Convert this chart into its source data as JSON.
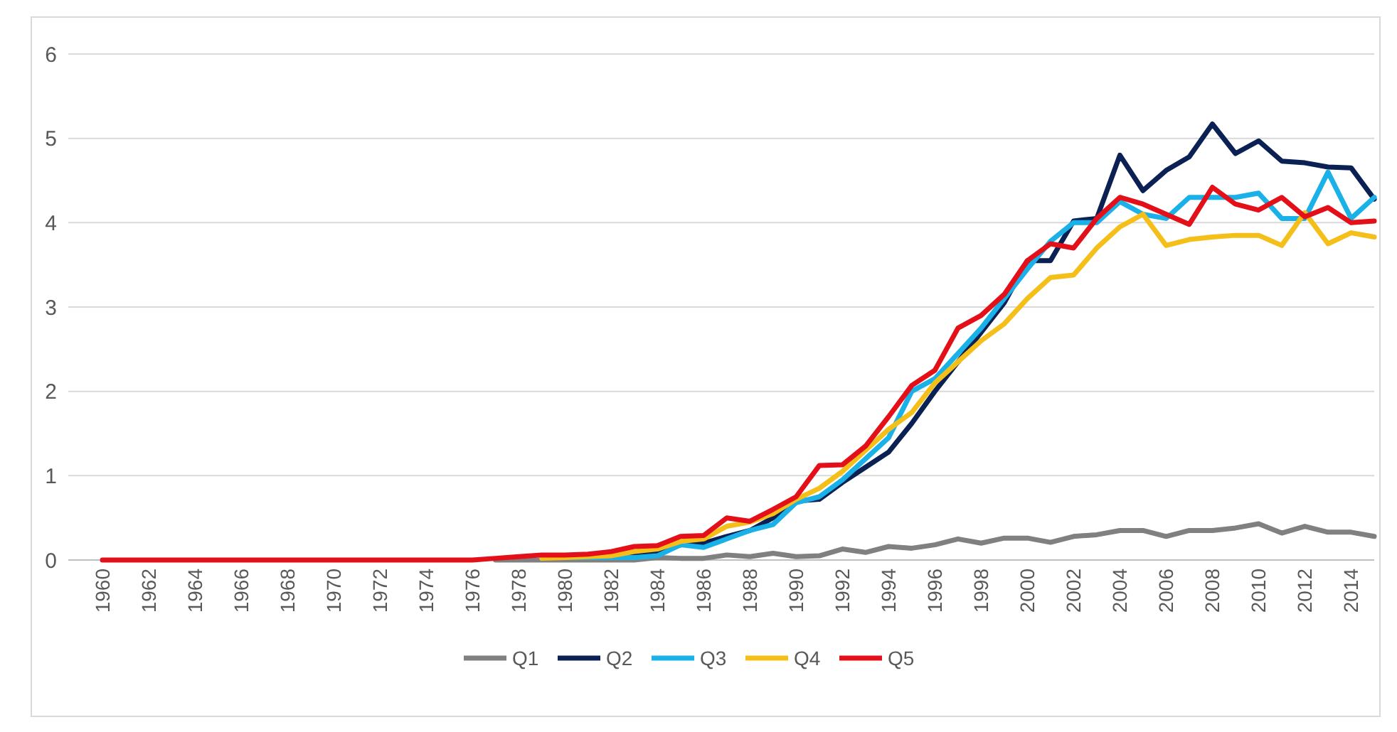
{
  "chart_data": {
    "type": "line",
    "categories": [
      "1960",
      null,
      "1962",
      null,
      "1964",
      null,
      "1966",
      null,
      "1968",
      null,
      "1970",
      null,
      "1972",
      null,
      "1974",
      null,
      "1976",
      null,
      "1978",
      null,
      "1980",
      null,
      "1982",
      null,
      "1984",
      null,
      "1986",
      null,
      "1988",
      null,
      "1990",
      null,
      "1992",
      null,
      "1994",
      null,
      "1996",
      null,
      "1998",
      null,
      "2000",
      null,
      "2002",
      null,
      "2004",
      null,
      "2006",
      null,
      "2008",
      null,
      "2010",
      null,
      "2012",
      null,
      "2014",
      null
    ],
    "ylim": [
      0,
      6
    ],
    "yticks": [
      0,
      1,
      2,
      3,
      4,
      5,
      6
    ],
    "grid": "y",
    "legend": "bottom",
    "marker": "none",
    "line_style": "solid",
    "series": [
      {
        "name": "Q1",
        "color": "#808080",
        "values": [
          null,
          null,
          null,
          null,
          null,
          null,
          null,
          null,
          null,
          null,
          null,
          null,
          null,
          null,
          null,
          null,
          null,
          0,
          0,
          0,
          0,
          0,
          0,
          0,
          0.03,
          0.02,
          0.02,
          0.06,
          0.04,
          0.08,
          0.04,
          0.05,
          0.13,
          0.09,
          0.16,
          0.14,
          0.18,
          0.25,
          0.2,
          0.26,
          0.26,
          0.21,
          0.28,
          0.3,
          0.35,
          0.35,
          0.28,
          0.35,
          0.35,
          0.38,
          0.43,
          0.32,
          0.4,
          0.33,
          0.33,
          0.28
        ]
      },
      {
        "name": "Q2",
        "color": "#0b2154",
        "values": [
          null,
          null,
          null,
          null,
          null,
          null,
          null,
          null,
          null,
          null,
          null,
          null,
          null,
          null,
          null,
          null,
          null,
          null,
          null,
          null,
          null,
          null,
          0.03,
          0.05,
          0.08,
          0.18,
          0.2,
          0.28,
          0.35,
          0.5,
          0.7,
          0.72,
          0.92,
          1.1,
          1.28,
          1.62,
          2.0,
          2.35,
          2.7,
          3.05,
          3.55,
          3.55,
          4.02,
          4.05,
          4.8,
          4.38,
          4.62,
          4.78,
          5.17,
          4.82,
          4.97,
          4.73,
          4.71,
          4.66,
          4.65,
          4.28
        ]
      },
      {
        "name": "Q3",
        "color": "#1ab0e8",
        "values": [
          null,
          null,
          null,
          null,
          null,
          null,
          null,
          null,
          null,
          null,
          null,
          null,
          null,
          null,
          null,
          null,
          null,
          null,
          null,
          0.03,
          0.03,
          0.03,
          0.03,
          0.03,
          0.05,
          0.18,
          0.15,
          0.25,
          0.35,
          0.42,
          0.68,
          0.75,
          0.95,
          1.2,
          1.45,
          2.0,
          2.15,
          2.45,
          2.75,
          3.1,
          3.45,
          3.78,
          4.0,
          4.0,
          4.25,
          4.1,
          4.05,
          4.3,
          4.3,
          4.3,
          4.35,
          4.05,
          4.05,
          4.6,
          4.05,
          4.3
        ]
      },
      {
        "name": "Q4",
        "color": "#f5bf1a",
        "values": [
          null,
          null,
          null,
          null,
          null,
          null,
          null,
          null,
          null,
          null,
          null,
          null,
          null,
          null,
          null,
          null,
          null,
          null,
          null,
          0.02,
          0.03,
          0.04,
          0.05,
          0.1,
          0.13,
          0.22,
          0.25,
          0.4,
          0.45,
          0.55,
          0.72,
          0.85,
          1.05,
          1.3,
          1.55,
          1.75,
          2.1,
          2.35,
          2.6,
          2.8,
          3.1,
          3.35,
          3.38,
          3.7,
          3.95,
          4.1,
          3.73,
          3.8,
          3.83,
          3.85,
          3.85,
          3.73,
          4.12,
          3.75,
          3.88,
          3.83
        ]
      },
      {
        "name": "Q5",
        "color": "#e3101a",
        "values": [
          0,
          0,
          0,
          0,
          0,
          0,
          0,
          0,
          0,
          0,
          0,
          0,
          0,
          0,
          0,
          0,
          0,
          0.02,
          0.04,
          0.06,
          0.06,
          0.07,
          0.1,
          0.16,
          0.17,
          0.28,
          0.29,
          0.5,
          0.46,
          0.6,
          0.75,
          1.12,
          1.13,
          1.35,
          1.7,
          2.07,
          2.25,
          2.75,
          2.9,
          3.15,
          3.55,
          3.75,
          3.7,
          4.05,
          4.3,
          4.22,
          4.1,
          3.98,
          4.42,
          4.22,
          4.15,
          4.3,
          4.07,
          4.18,
          4.0,
          4.02
        ]
      }
    ]
  }
}
